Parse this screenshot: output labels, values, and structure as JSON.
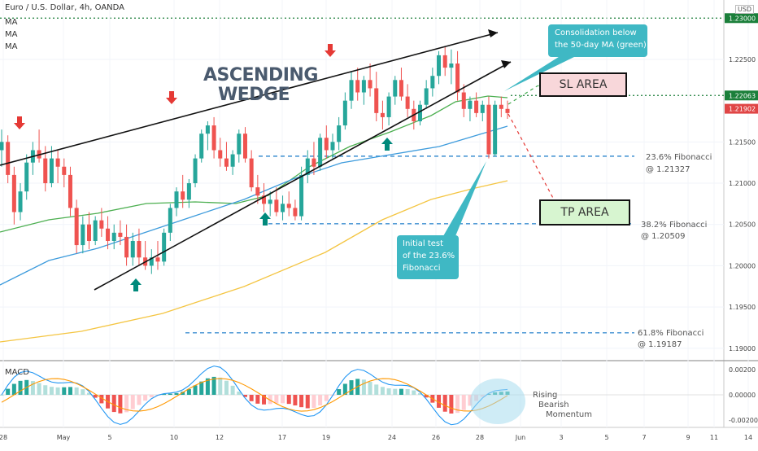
{
  "header": {
    "symbol": "Euro / U.S. Dollar, 4h, OANDA",
    "ma_labels": [
      "MA",
      "MA",
      "MA"
    ],
    "currency": "USD"
  },
  "chart_data": {
    "type": "candlestick",
    "y_axis": {
      "ticks": [
        "1.23000",
        "1.22500",
        "1.22063",
        "1.21902",
        "1.21500",
        "1.21000",
        "1.20500",
        "1.20000",
        "1.19500",
        "1.19000"
      ],
      "range": [
        1.1885,
        1.232
      ]
    },
    "x_axis": {
      "ticks": [
        "28",
        "May",
        "5",
        "10",
        "12",
        "17",
        "19",
        "24",
        "26",
        "28",
        "Jun",
        "3",
        "5",
        "7",
        "9",
        "11",
        "14"
      ]
    },
    "price_tags": [
      {
        "value": 1.23,
        "label": "1.23000",
        "color": "#1b7f3a"
      },
      {
        "value": 1.22063,
        "label": "1.22063",
        "color": "#1b7f3a"
      },
      {
        "value": 1.21902,
        "label": "1.21902",
        "color": "#e04545"
      }
    ],
    "candles": [
      [
        1.214,
        1.2165,
        1.212,
        1.215
      ],
      [
        1.215,
        1.2158,
        1.21,
        1.211
      ],
      [
        1.211,
        1.212,
        1.205,
        1.2065
      ],
      [
        1.2065,
        1.21,
        1.2055,
        1.209
      ],
      [
        1.209,
        1.2135,
        1.208,
        1.2125
      ],
      [
        1.2125,
        1.215,
        1.211,
        1.214
      ],
      [
        1.214,
        1.2165,
        1.2125,
        1.213
      ],
      [
        1.213,
        1.2145,
        1.209,
        1.21
      ],
      [
        1.21,
        1.2145,
        1.2095,
        1.213
      ],
      [
        1.213,
        1.214,
        1.21,
        1.212
      ],
      [
        1.212,
        1.213,
        1.2095,
        1.211
      ],
      [
        1.211,
        1.212,
        1.206,
        1.207
      ],
      [
        1.207,
        1.208,
        1.2015,
        1.2025
      ],
      [
        1.2025,
        1.206,
        1.2015,
        1.205
      ],
      [
        1.205,
        1.2065,
        1.202,
        1.203
      ],
      [
        1.203,
        1.206,
        1.2025,
        1.2055
      ],
      [
        1.2055,
        1.207,
        1.2035,
        1.2045
      ],
      [
        1.2045,
        1.206,
        1.202,
        1.203
      ],
      [
        1.203,
        1.205,
        1.202,
        1.204
      ],
      [
        1.204,
        1.2055,
        1.2025,
        1.2035
      ],
      [
        1.2035,
        1.205,
        1.2,
        1.201
      ],
      [
        1.201,
        1.204,
        1.2,
        1.203
      ],
      [
        1.203,
        1.2045,
        1.2,
        1.201
      ],
      [
        1.201,
        1.203,
        1.1995,
        1.2
      ],
      [
        1.2,
        1.202,
        1.199,
        1.201
      ],
      [
        1.201,
        1.203,
        1.1995,
        1.2005
      ],
      [
        1.2005,
        1.2045,
        1.2,
        1.204
      ],
      [
        1.204,
        1.2075,
        1.203,
        1.207
      ],
      [
        1.207,
        1.2095,
        1.206,
        1.209
      ],
      [
        1.209,
        1.211,
        1.207,
        1.208
      ],
      [
        1.208,
        1.2105,
        1.207,
        1.21
      ],
      [
        1.21,
        1.2135,
        1.2095,
        1.213
      ],
      [
        1.213,
        1.2165,
        1.2125,
        1.216
      ],
      [
        1.216,
        1.2175,
        1.214,
        1.217
      ],
      [
        1.217,
        1.218,
        1.213,
        1.214
      ],
      [
        1.214,
        1.2155,
        1.212,
        1.213
      ],
      [
        1.213,
        1.215,
        1.2115,
        1.212
      ],
      [
        1.212,
        1.214,
        1.211,
        1.2135
      ],
      [
        1.2135,
        1.2165,
        1.2125,
        1.216
      ],
      [
        1.216,
        1.2168,
        1.2125,
        1.213
      ],
      [
        1.213,
        1.214,
        1.209,
        1.2095
      ],
      [
        1.2095,
        1.211,
        1.2075,
        1.2085
      ],
      [
        1.2085,
        1.21,
        1.2065,
        1.2075
      ],
      [
        1.2075,
        1.209,
        1.206,
        1.208
      ],
      [
        1.208,
        1.2095,
        1.206,
        1.2065
      ],
      [
        1.2065,
        1.2085,
        1.2055,
        1.2075
      ],
      [
        1.2075,
        1.209,
        1.206,
        1.207
      ],
      [
        1.207,
        1.208,
        1.2055,
        1.206
      ],
      [
        1.206,
        1.212,
        1.2055,
        1.211
      ],
      [
        1.211,
        1.214,
        1.21,
        1.213
      ],
      [
        1.213,
        1.215,
        1.211,
        1.212
      ],
      [
        1.212,
        1.216,
        1.2115,
        1.2155
      ],
      [
        1.2155,
        1.217,
        1.213,
        1.214
      ],
      [
        1.214,
        1.216,
        1.213,
        1.215
      ],
      [
        1.215,
        1.218,
        1.214,
        1.217
      ],
      [
        1.217,
        1.221,
        1.2165,
        1.22
      ],
      [
        1.22,
        1.2235,
        1.219,
        1.2225
      ],
      [
        1.2225,
        1.224,
        1.22,
        1.221
      ],
      [
        1.221,
        1.223,
        1.2195,
        1.2225
      ],
      [
        1.2225,
        1.2245,
        1.2205,
        1.2215
      ],
      [
        1.2215,
        1.2235,
        1.2175,
        1.2185
      ],
      [
        1.2185,
        1.22,
        1.2165,
        1.218
      ],
      [
        1.218,
        1.221,
        1.217,
        1.2205
      ],
      [
        1.2205,
        1.223,
        1.2195,
        1.2225
      ],
      [
        1.2225,
        1.224,
        1.22,
        1.2205
      ],
      [
        1.2205,
        1.222,
        1.218,
        1.219
      ],
      [
        1.219,
        1.22,
        1.2165,
        1.2175
      ],
      [
        1.2175,
        1.22,
        1.217,
        1.2195
      ],
      [
        1.2195,
        1.2225,
        1.219,
        1.2215
      ],
      [
        1.2215,
        1.224,
        1.2205,
        1.223
      ],
      [
        1.223,
        1.226,
        1.222,
        1.2255
      ],
      [
        1.2255,
        1.2265,
        1.223,
        1.224
      ],
      [
        1.224,
        1.2262,
        1.222,
        1.2245
      ],
      [
        1.2245,
        1.226,
        1.22,
        1.221
      ],
      [
        1.221,
        1.222,
        1.218,
        1.219
      ],
      [
        1.219,
        1.2205,
        1.2175,
        1.22
      ],
      [
        1.22,
        1.221,
        1.218,
        1.2185
      ],
      [
        1.2185,
        1.22,
        1.2175,
        1.2195
      ],
      [
        1.2195,
        1.2205,
        1.213,
        1.2135
      ],
      [
        1.2135,
        1.22,
        1.2132,
        1.2195
      ],
      [
        1.2195,
        1.2205,
        1.218,
        1.219
      ],
      [
        1.219,
        1.22,
        1.2178,
        1.2185
      ]
    ],
    "moving_averages": [
      {
        "name": "",
        "color": "#4caf50"
      },
      {
        "name": "",
        "color": "#3d9bdc"
      },
      {
        "name": "",
        "color": "#f4c542"
      }
    ],
    "fibonacci_levels": [
      {
        "label": "23.6% Fibonacci",
        "value_label": "@ 1.21327",
        "value": 1.21327
      },
      {
        "label": "38.2% Fibonacci",
        "value_label": "@ 1.20509",
        "value": 1.20509
      },
      {
        "label": "61.8% Fibonacci",
        "value_label": "@ 1.19187",
        "value": 1.19187
      }
    ],
    "pattern_title": [
      "ASCENDING",
      "WEDGE"
    ],
    "annotations": {
      "consolidation": [
        "Consolidation below",
        "the 50-day MA (green)"
      ],
      "initial_test": [
        "Initial test",
        "of the 23.6%",
        "Fibonacci"
      ],
      "sl_area": "SL AREA",
      "tp_area": "TP AREA"
    },
    "macd": {
      "title": "MACD",
      "ticks": [
        "0.00200",
        "0.00000",
        "-0.00200"
      ],
      "range": [
        -0.0024,
        0.0024
      ],
      "note": [
        "Rising",
        "Bearish",
        "Momentum"
      ]
    }
  }
}
